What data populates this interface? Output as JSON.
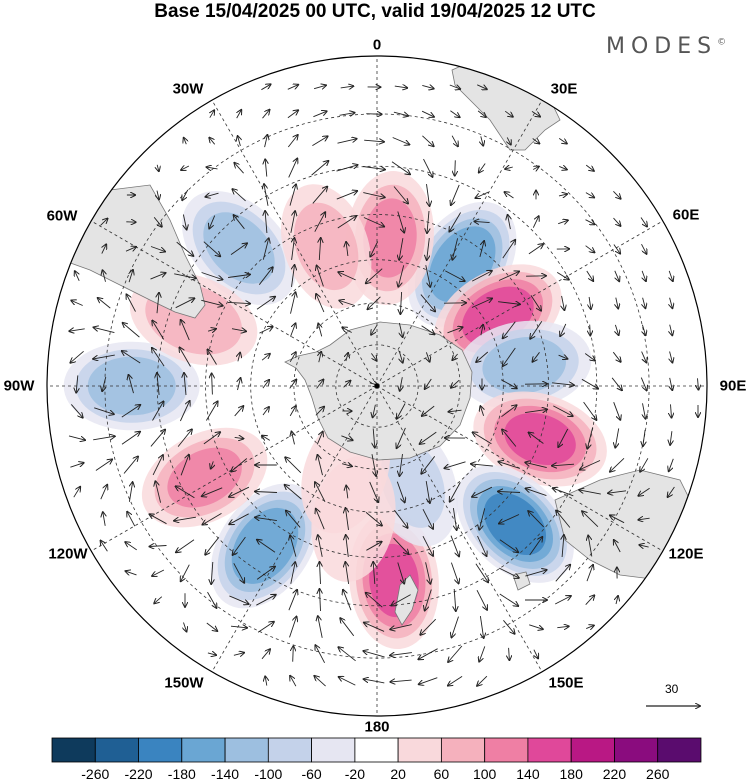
{
  "title": "Base 15/04/2025 00 UTC, valid 19/04/2025 12 UTC",
  "brand": {
    "text": "MODES",
    "mark": "©"
  },
  "longitude_labels": {
    "deg0": "0",
    "deg30e": "30E",
    "deg60e": "60E",
    "deg90e": "90E",
    "deg120e": "120E",
    "deg150e": "150E",
    "deg180": "180",
    "deg150w": "150W",
    "deg120w": "120W",
    "deg90w": "90W",
    "deg60w": "60W",
    "deg30w": "30W"
  },
  "vector_reference": {
    "value": "30"
  },
  "colorbar": {
    "ticks": [
      "-260",
      "-220",
      "-180",
      "-140",
      "-100",
      "-60",
      "-20",
      "20",
      "60",
      "100",
      "140",
      "180",
      "220",
      "260"
    ],
    "colors": [
      "#0e3a5c",
      "#1f5f94",
      "#3a84c0",
      "#6aa6d3",
      "#9dbfe0",
      "#c4d2ea",
      "#e6e6f2",
      "#ffffff",
      "#f9d9dc",
      "#f5b1bd",
      "#ef7fa4",
      "#e0489a",
      "#b91884",
      "#8a0c7e",
      "#5a0c6e"
    ]
  },
  "map": {
    "projection": "south-polar-stereographic",
    "anomaly_centers": [
      {
        "lon": 35,
        "lat": -55,
        "value": -180
      },
      {
        "lon": 60,
        "lat": -57,
        "value": 160
      },
      {
        "lon": 82,
        "lat": -55,
        "value": -120
      },
      {
        "lon": 108,
        "lat": -50,
        "value": 150
      },
      {
        "lon": 135,
        "lat": -45,
        "value": -200
      },
      {
        "lon": 175,
        "lat": -45,
        "value": 150
      },
      {
        "lon": -145,
        "lat": -45,
        "value": -180
      },
      {
        "lon": -118,
        "lat": -45,
        "value": 110
      },
      {
        "lon": -90,
        "lat": -35,
        "value": -130
      },
      {
        "lon": -45,
        "lat": -45,
        "value": -120
      },
      {
        "lon": -70,
        "lat": -45,
        "value": 90
      },
      {
        "lon": 5,
        "lat": -55,
        "value": 110
      },
      {
        "lon": -20,
        "lat": -55,
        "value": 70
      },
      {
        "lon": 160,
        "lat": -65,
        "value": -70
      },
      {
        "lon": -160,
        "lat": -68,
        "value": 60
      },
      {
        "lon": -170,
        "lat": -58,
        "value": 60
      }
    ]
  }
}
